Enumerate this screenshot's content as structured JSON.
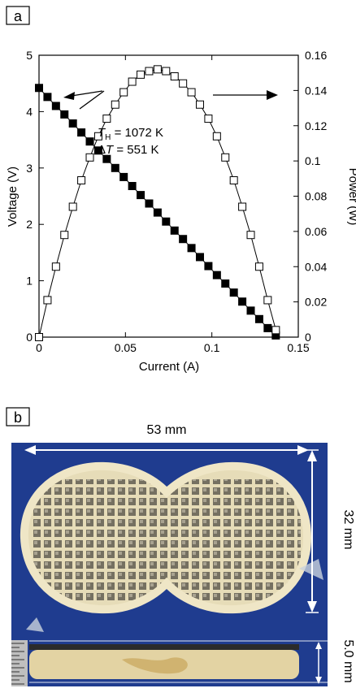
{
  "panel_a": {
    "label": "a",
    "annotation_line1_prefix": "T",
    "annotation_line1_sub": "H",
    "annotation_line1_value": " = 1072 K",
    "annotation_line2_prefix": "Δ",
    "annotation_line2_var": "T",
    "annotation_line2_value": " = 551 K"
  },
  "panel_b": {
    "label": "b",
    "width_dim": "53 mm",
    "height_dim": "32 mm",
    "thickness_dim": "5.0 mm"
  },
  "colors": {
    "photo_background": "#1f3c8f",
    "module_body": "#e6dcb8",
    "cell_fill": "#6f6a5c"
  },
  "chart_data": {
    "type": "line",
    "xlabel": "Current (A)",
    "ylabel": "Voltage (V)",
    "y2label": "Power (W)",
    "xlim": [
      0,
      0.15
    ],
    "ylim": [
      0,
      5
    ],
    "y2lim": [
      0,
      0.16
    ],
    "xticks": [
      "0",
      "0.05",
      "0.1",
      "0.15"
    ],
    "yticks": [
      "0",
      "1",
      "2",
      "3",
      "4",
      "5"
    ],
    "y2ticks": [
      "0",
      "0.02",
      "0.04",
      "0.06",
      "0.08",
      "0.1",
      "0.12",
      "0.14",
      "0.16"
    ],
    "legend": "none",
    "grid": false,
    "series": [
      {
        "axis": "left",
        "marker": "filled-square",
        "x": [
          0.0,
          0.0049,
          0.0098,
          0.0147,
          0.0196,
          0.0245,
          0.0294,
          0.0343,
          0.0392,
          0.0441,
          0.049,
          0.0539,
          0.0588,
          0.0637,
          0.0686,
          0.0735,
          0.0784,
          0.0833,
          0.0882,
          0.0931,
          0.098,
          0.1029,
          0.1078,
          0.1127,
          0.1176,
          0.1225,
          0.1274,
          0.1323,
          0.137
        ],
        "values": [
          4.42,
          4.26,
          4.1,
          3.95,
          3.79,
          3.63,
          3.47,
          3.31,
          3.16,
          3.0,
          2.84,
          2.68,
          2.52,
          2.37,
          2.21,
          2.05,
          1.89,
          1.74,
          1.58,
          1.42,
          1.26,
          1.1,
          0.95,
          0.79,
          0.63,
          0.47,
          0.32,
          0.16,
          0.03
        ]
      },
      {
        "axis": "right",
        "marker": "open-square",
        "x": [
          0.0,
          0.0049,
          0.0098,
          0.0147,
          0.0196,
          0.0245,
          0.0294,
          0.0343,
          0.0392,
          0.0441,
          0.049,
          0.0539,
          0.0588,
          0.0637,
          0.0686,
          0.0735,
          0.0784,
          0.0833,
          0.0882,
          0.0931,
          0.098,
          0.1029,
          0.1078,
          0.1127,
          0.1176,
          0.1225,
          0.1274,
          0.1323,
          0.137
        ],
        "values": [
          0.0,
          0.021,
          0.04,
          0.058,
          0.074,
          0.089,
          0.102,
          0.114,
          0.124,
          0.132,
          0.139,
          0.145,
          0.149,
          0.151,
          0.152,
          0.151,
          0.148,
          0.144,
          0.139,
          0.132,
          0.124,
          0.114,
          0.102,
          0.089,
          0.074,
          0.058,
          0.04,
          0.021,
          0.004
        ]
      }
    ]
  }
}
